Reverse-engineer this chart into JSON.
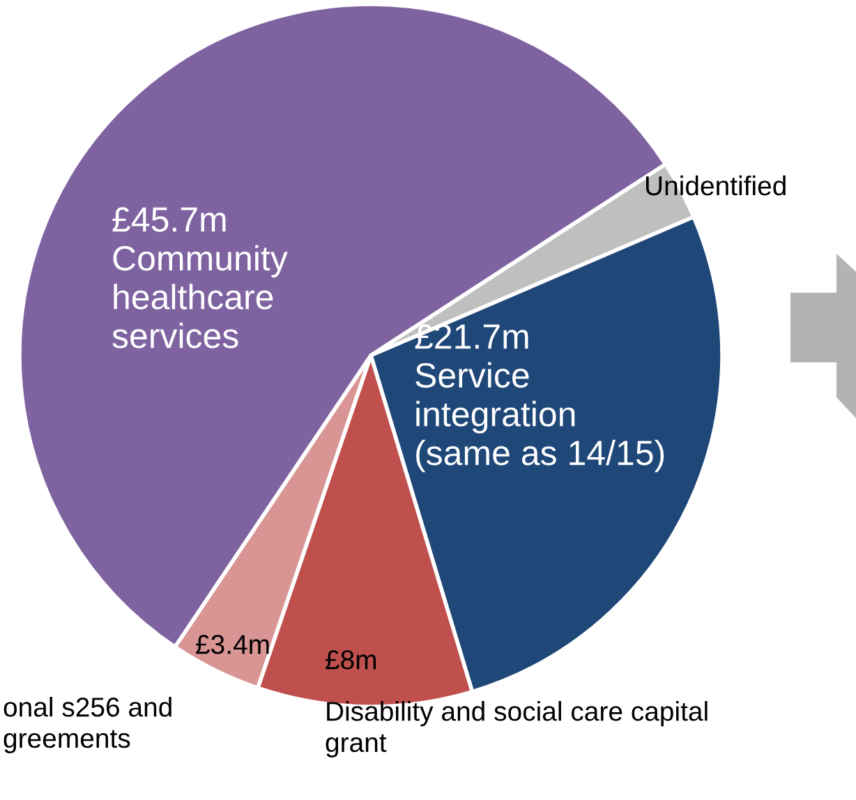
{
  "chart_data": {
    "type": "pie",
    "categories": [
      "Unidentified",
      "Service\nintegration\n(same as 14/15)",
      "Disability and social care capital\ngrant",
      "onal s256 and\ngreements",
      "Community\nhealthcare\nservices"
    ],
    "values": [
      2.2,
      21.7,
      8,
      3.4,
      45.7
    ],
    "value_labels": [
      null,
      "£21.7m",
      "£8m",
      "£3.4m",
      "£45.7m"
    ],
    "colors": [
      "#bfbfbf",
      "#1f4778",
      "#c0504d",
      "#d99594",
      "#7f63a1"
    ],
    "legend": false
  }
}
